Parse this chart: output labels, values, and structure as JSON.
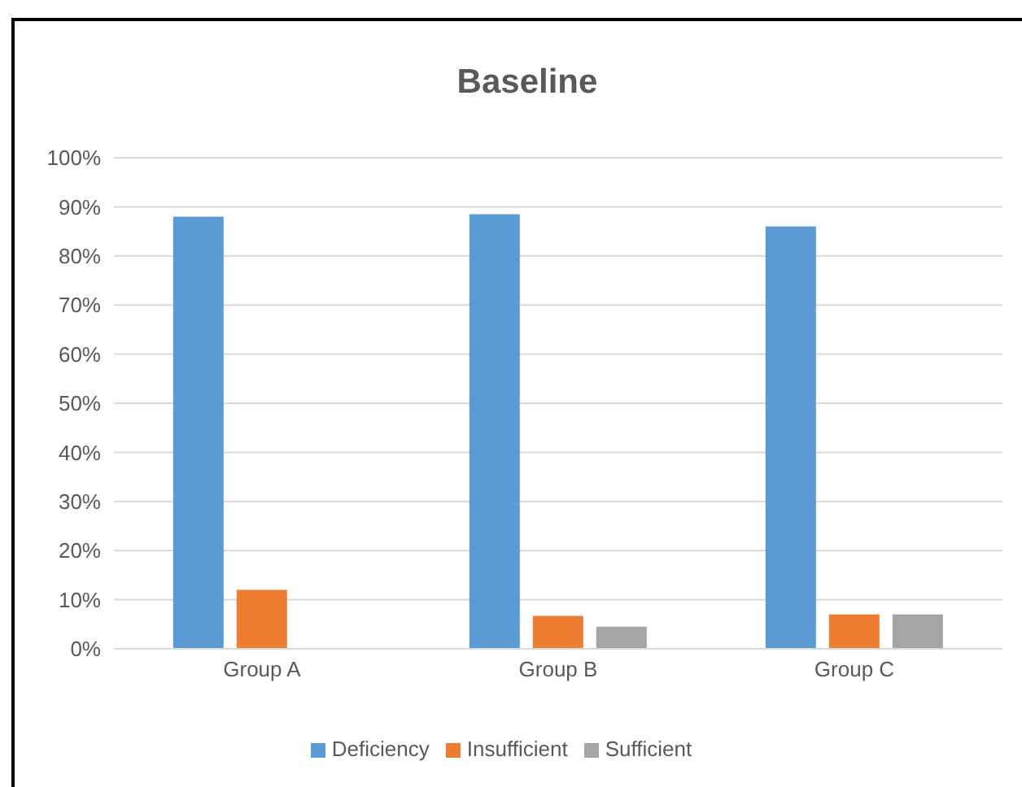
{
  "chart_data": {
    "type": "bar",
    "title": "Baseline",
    "categories": [
      "Group A",
      "Group B",
      "Group C"
    ],
    "series": [
      {
        "name": "Deficiency",
        "color": "#5b9bd5",
        "values": [
          88,
          88.5,
          86
        ]
      },
      {
        "name": "Insufficient",
        "color": "#ed7d31",
        "values": [
          12,
          6.7,
          7
        ]
      },
      {
        "name": "Sufficient",
        "color": "#a5a5a5",
        "values": [
          null,
          4.5,
          7
        ]
      }
    ],
    "ylim": [
      0,
      100
    ],
    "yticks": [
      {
        "value": 0,
        "label": "0%"
      },
      {
        "value": 10,
        "label": "10%"
      },
      {
        "value": 20,
        "label": "20%"
      },
      {
        "value": 30,
        "label": "30%"
      },
      {
        "value": 40,
        "label": "40%"
      },
      {
        "value": 50,
        "label": "50%"
      },
      {
        "value": 60,
        "label": "60%"
      },
      {
        "value": 70,
        "label": "70%"
      },
      {
        "value": 80,
        "label": "80%"
      },
      {
        "value": 90,
        "label": "90%"
      },
      {
        "value": 100,
        "label": "100%"
      }
    ],
    "grid": "y",
    "legend": "bottom"
  }
}
